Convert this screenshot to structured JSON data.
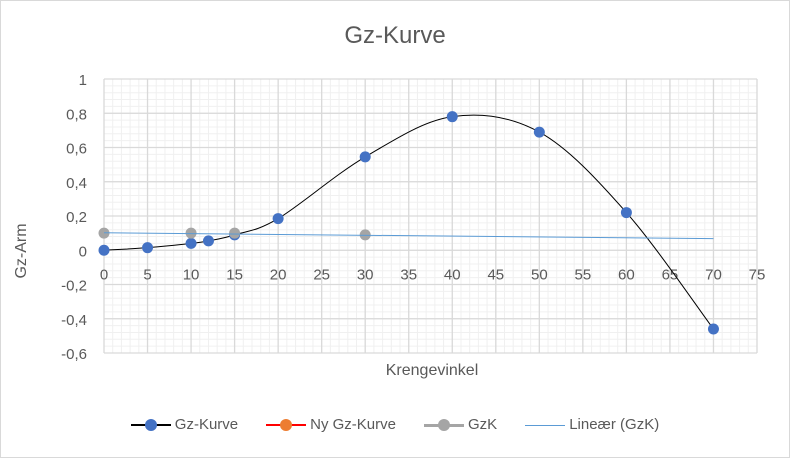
{
  "chart_data": {
    "type": "scatter",
    "title": "Gz-Kurve",
    "xlabel": "Krengevinkel",
    "ylabel": "Gz-Arm",
    "xlim": [
      0,
      75
    ],
    "ylim": [
      -0.6,
      1
    ],
    "x_ticks": [
      0,
      5,
      10,
      15,
      20,
      25,
      30,
      35,
      40,
      45,
      50,
      55,
      60,
      65,
      70,
      75
    ],
    "y_ticks": [
      1,
      0.8,
      0.6,
      0.4,
      0.2,
      0,
      -0.2,
      -0.4,
      -0.6
    ],
    "y_tick_labels": [
      "1",
      "0,8",
      "0,6",
      "0,4",
      "0,2",
      "0",
      "-0,2",
      "-0,4",
      "-0,6"
    ],
    "grid": {
      "major": true,
      "minor": true
    },
    "legend_position": "bottom",
    "series": [
      {
        "name": "Gz-Kurve",
        "style": "smooth-line-markers",
        "line_color": "#000000",
        "marker_color": "#4472C4",
        "x": [
          0,
          5,
          10,
          12,
          15,
          20,
          30,
          40,
          50,
          60,
          70
        ],
        "y": [
          0,
          0.015,
          0.04,
          0.055,
          0.09,
          0.185,
          0.545,
          0.78,
          0.69,
          0.22,
          -0.46
        ]
      },
      {
        "name": "Ny Gz-Kurve",
        "style": "line-markers",
        "line_color": "#FF0000",
        "marker_color": "#ED7D31",
        "x": [],
        "y": []
      },
      {
        "name": "GzK",
        "style": "markers",
        "line_color": "#A5A5A5",
        "marker_color": "#A5A5A5",
        "x": [
          0,
          10,
          15,
          30
        ],
        "y": [
          0.1,
          0.1,
          0.1,
          0.09
        ]
      },
      {
        "name": "Lineær (GzK)",
        "style": "trendline",
        "line_color": "#5B9BD5",
        "x": [
          0,
          70
        ],
        "y": [
          0.102,
          0.068
        ]
      }
    ]
  }
}
